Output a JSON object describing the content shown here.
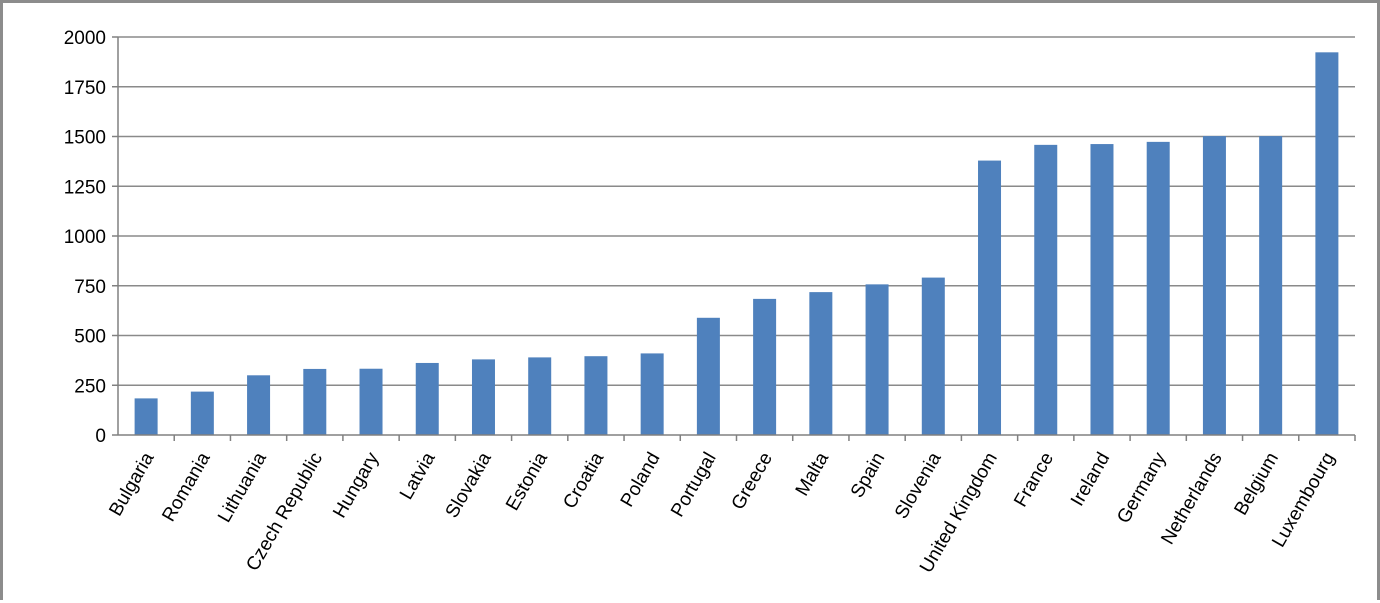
{
  "chart_data": {
    "type": "bar",
    "title": "",
    "xlabel": "",
    "ylabel": "",
    "ylim": [
      0,
      2000
    ],
    "yticks": [
      0,
      250,
      500,
      750,
      1000,
      1250,
      1500,
      1750,
      2000
    ],
    "grid": true,
    "legend": "none",
    "bar_color": "#4f81bd",
    "categories": [
      "Bulgaria",
      "Romania",
      "Lithuania",
      "Czech Republic",
      "Hungary",
      "Latvia",
      "Slovakia",
      "Estonia",
      "Croatia",
      "Poland",
      "Portugal",
      "Greece",
      "Malta",
      "Spain",
      "Slovenia",
      "United Kingdom",
      "France",
      "Ireland",
      "Germany",
      "Netherlands",
      "Belgium",
      "Luxembourg"
    ],
    "values": [
      184,
      218,
      300,
      332,
      333,
      362,
      380,
      390,
      396,
      410,
      589,
      684,
      718,
      757,
      791,
      1379,
      1458,
      1462,
      1473,
      1502,
      1502,
      1923
    ]
  }
}
